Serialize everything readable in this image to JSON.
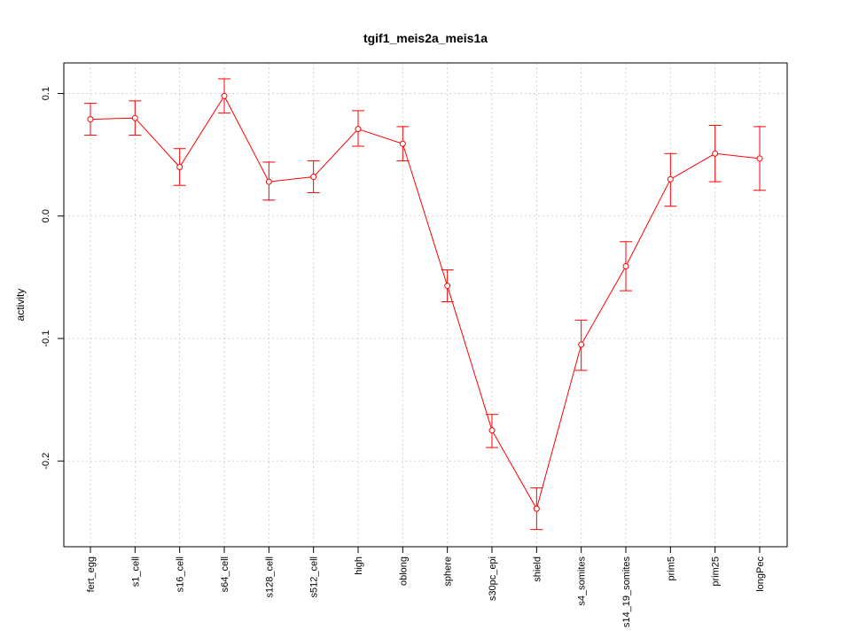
{
  "chart_data": {
    "type": "line",
    "title": "tgif1_meis2a_meis1a",
    "xlabel": "",
    "ylabel": "activity",
    "categories": [
      "fert_egg",
      "s1_cell",
      "s16_cell",
      "s64_cell",
      "s128_cell",
      "s512_cell",
      "high",
      "oblong",
      "sphere",
      "s30pc_epi",
      "shield",
      "s4_somites",
      "s14_19_somites",
      "prim5",
      "prim25",
      "longPec"
    ],
    "series": [
      {
        "values": [
          0.079,
          0.08,
          0.04,
          0.098,
          0.028,
          0.032,
          0.071,
          0.059,
          -0.057,
          -0.175,
          -0.239,
          -0.105,
          -0.041,
          0.03,
          0.051,
          0.047
        ],
        "upper": [
          0.092,
          0.094,
          0.055,
          0.112,
          0.044,
          0.045,
          0.086,
          0.073,
          -0.044,
          -0.162,
          -0.222,
          -0.085,
          -0.021,
          0.051,
          0.074,
          0.073
        ],
        "lower": [
          0.066,
          0.066,
          0.025,
          0.084,
          0.013,
          0.019,
          0.057,
          0.045,
          -0.07,
          -0.189,
          -0.256,
          -0.126,
          -0.061,
          0.008,
          0.028,
          0.021
        ],
        "color": "#ff0000"
      }
    ],
    "ylim": [
      -0.27,
      0.125
    ],
    "yticks": [
      -0.2,
      -0.1,
      0.0,
      0.1
    ],
    "ytick_labels": [
      "-0.2",
      "-0.1",
      "0.0",
      "0.1"
    ],
    "grid": true,
    "legend": "none"
  }
}
